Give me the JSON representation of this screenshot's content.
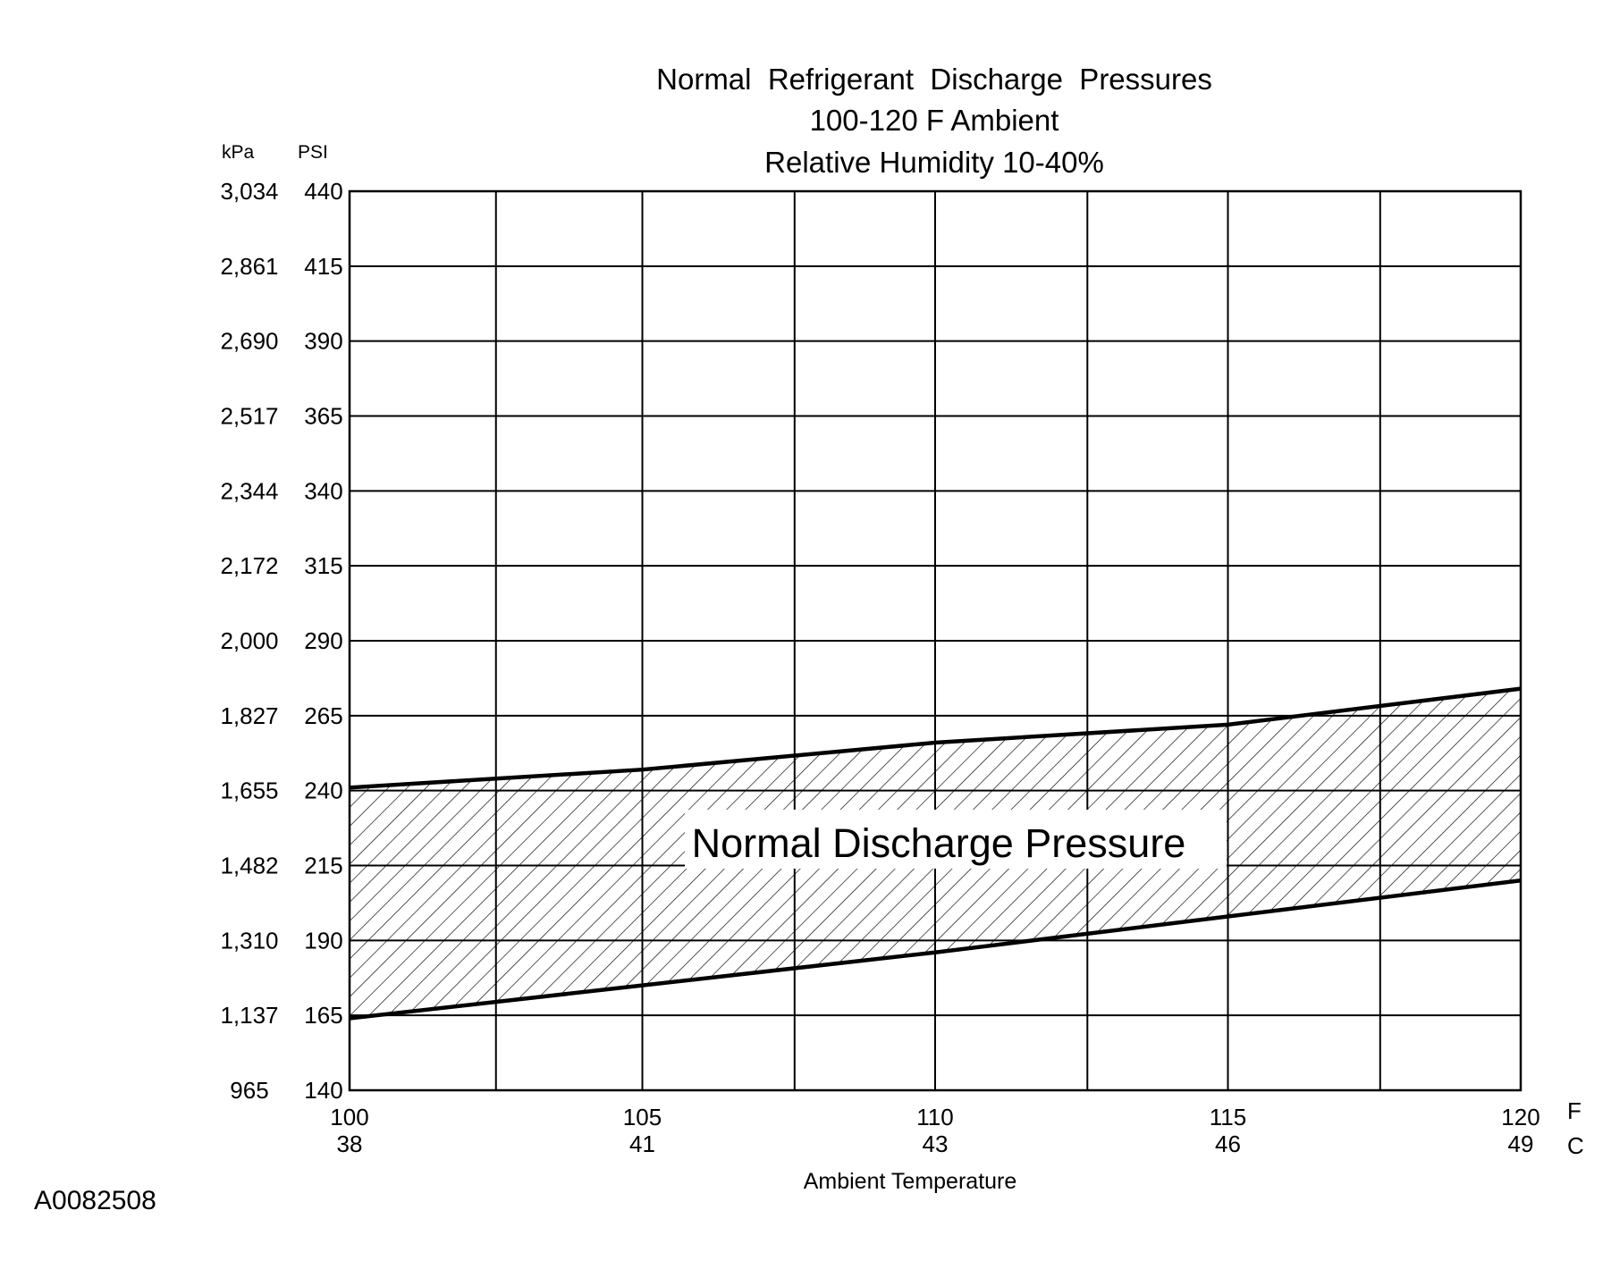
{
  "chart_data": {
    "type": "area",
    "title": "Normal  Refrigerant  Discharge  Pressures",
    "subtitle_lines": [
      "100-120 F Ambient",
      "Relative Humidity 10-40%"
    ],
    "xlabel": "Ambient Temperature",
    "x_unit_primary": "F",
    "x_unit_secondary": "C",
    "y_unit_primary": "PSI",
    "y_unit_secondary": "kPa",
    "xlim": [
      100,
      120
    ],
    "ylim": [
      140,
      440
    ],
    "x_ticks": [
      {
        "f": "100",
        "c": "38"
      },
      {
        "f": "105",
        "c": "41"
      },
      {
        "f": "110",
        "c": "43"
      },
      {
        "f": "115",
        "c": "46"
      },
      {
        "f": "120",
        "c": "49"
      }
    ],
    "x_gridlines": [
      100,
      102.5,
      105,
      107.6,
      110,
      112.6,
      115,
      117.6,
      120
    ],
    "y_ticks": [
      {
        "psi": "440",
        "kpa": "3,034"
      },
      {
        "psi": "415",
        "kpa": "2,861"
      },
      {
        "psi": "390",
        "kpa": "2,690"
      },
      {
        "psi": "365",
        "kpa": "2,517"
      },
      {
        "psi": "340",
        "kpa": "2,344"
      },
      {
        "psi": "315",
        "kpa": "2,172"
      },
      {
        "psi": "290",
        "kpa": "2,000"
      },
      {
        "psi": "265",
        "kpa": "1,827"
      },
      {
        "psi": "240",
        "kpa": "1,655"
      },
      {
        "psi": "215",
        "kpa": "1,482"
      },
      {
        "psi": "190",
        "kpa": "1,310"
      },
      {
        "psi": "165",
        "kpa": "1,137"
      },
      {
        "psi": "140",
        "kpa": "965"
      }
    ],
    "grid": true,
    "series": [
      {
        "name": "Normal Discharge Pressure",
        "x": [
          100,
          105,
          110,
          115,
          120
        ],
        "upper": [
          241,
          247,
          256,
          262,
          274
        ],
        "lower": [
          164,
          175,
          186,
          198,
          210
        ],
        "fill": "hatched"
      }
    ]
  },
  "figure_id": "A0082508"
}
